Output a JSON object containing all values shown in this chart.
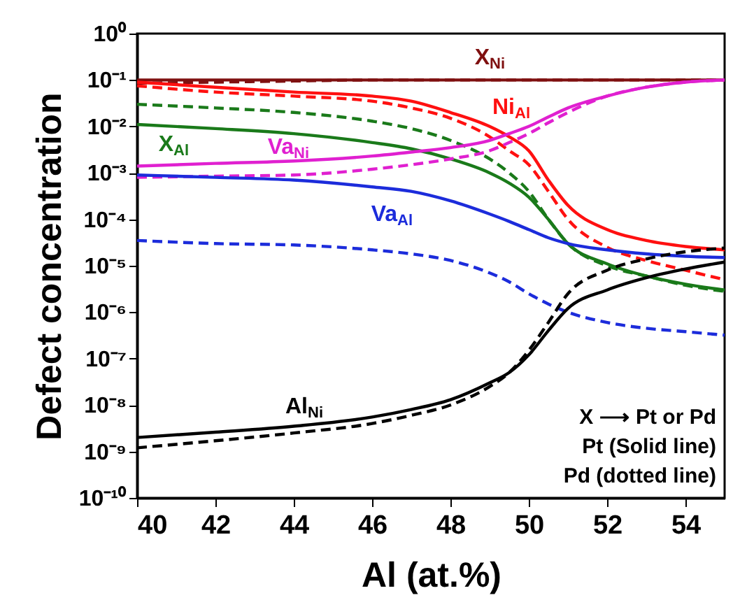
{
  "chart_data": {
    "type": "line",
    "xlabel": "Al (at.%)",
    "ylabel": "Defect concentration",
    "log": "y",
    "x": [
      40,
      42,
      44,
      46,
      47,
      48,
      49,
      49.5,
      50,
      50.5,
      51,
      52,
      53,
      54,
      55
    ],
    "xlim": [
      40,
      55
    ],
    "xticks": [
      40,
      42,
      44,
      46,
      48,
      50,
      52,
      54
    ],
    "ylim": [
      1e-10,
      1
    ],
    "yticks": [
      {
        "value": 1,
        "label": "10⁰"
      },
      {
        "value": 0.1,
        "label": "10⁻¹"
      },
      {
        "value": 0.01,
        "label": "10⁻²"
      },
      {
        "value": 0.001,
        "label": "10⁻³"
      },
      {
        "value": 0.0001,
        "label": "10⁻⁴"
      },
      {
        "value": 1e-05,
        "label": "10⁻⁵"
      },
      {
        "value": 1e-06,
        "label": "10⁻⁶"
      },
      {
        "value": 1e-07,
        "label": "10⁻⁷"
      },
      {
        "value": 1e-08,
        "label": "10⁻⁸"
      },
      {
        "value": 1e-09,
        "label": "10⁻⁹"
      },
      {
        "value": 1e-10,
        "label": "10⁻¹⁰"
      }
    ],
    "series": [
      {
        "name": "X$_{Ni}$",
        "color": "#7f1010",
        "line_style": "solid",
        "values": [
          0.1,
          0.1,
          0.1,
          0.1,
          0.1,
          0.1,
          0.1,
          0.1,
          0.1,
          0.1,
          0.1,
          0.1,
          0.1,
          0.1,
          0.1
        ]
      },
      {
        "color": "#7f1010",
        "line_style": "dashed",
        "values": [
          0.085,
          0.09,
          0.095,
          0.1,
          0.1,
          0.1,
          0.1,
          0.1,
          0.1,
          0.1,
          0.1,
          0.1,
          0.1,
          0.1,
          0.1
        ]
      },
      {
        "name": "Ni$_{Al}$",
        "color": "#ff1010",
        "line_style": "solid",
        "values": [
          0.09,
          0.07,
          0.055,
          0.045,
          0.035,
          0.02,
          0.01,
          0.006,
          0.003,
          0.0007,
          0.0002,
          6e-05,
          3.5e-05,
          2.6e-05,
          2.2e-05
        ]
      },
      {
        "color": "#ff1010",
        "line_style": "dashed",
        "values": [
          0.075,
          0.055,
          0.045,
          0.035,
          0.025,
          0.015,
          0.006,
          0.003,
          0.0015,
          0.0004,
          0.0001,
          2.5e-05,
          1.3e-05,
          8e-06,
          5e-06
        ]
      },
      {
        "name": "X$_{Al}$",
        "color": "#1a7a1a",
        "line_style": "solid",
        "values": [
          0.011,
          0.009,
          0.007,
          0.0045,
          0.0033,
          0.002,
          0.001,
          0.0006,
          0.0003,
          0.0001,
          3e-05,
          1.1e-05,
          6e-06,
          4e-06,
          3e-06
        ]
      },
      {
        "color": "#1a7a1a",
        "line_style": "dashed",
        "values": [
          0.03,
          0.025,
          0.02,
          0.013,
          0.009,
          0.005,
          0.002,
          0.001,
          0.0004,
          0.0001,
          3e-05,
          1e-05,
          6e-06,
          3.8e-06,
          2.8e-06
        ]
      },
      {
        "name": "Va$_{Ni}$",
        "color": "#e020d0",
        "line_style": "solid",
        "values": [
          0.0014,
          0.0016,
          0.0018,
          0.0023,
          0.0028,
          0.0035,
          0.005,
          0.007,
          0.01,
          0.016,
          0.025,
          0.045,
          0.07,
          0.09,
          0.1
        ]
      },
      {
        "color": "#e020d0",
        "line_style": "dashed",
        "values": [
          0.0008,
          0.00085,
          0.0009,
          0.0012,
          0.0015,
          0.002,
          0.003,
          0.0045,
          0.007,
          0.012,
          0.02,
          0.045,
          0.07,
          0.09,
          0.1
        ]
      },
      {
        "name": "Va$_{Al}$",
        "color": "#1c2cdb",
        "line_style": "solid",
        "values": [
          0.0009,
          0.0008,
          0.0007,
          0.0005,
          0.0004,
          0.00025,
          0.00013,
          9e-05,
          6e-05,
          4e-05,
          3e-05,
          2.2e-05,
          1.8e-05,
          1.6e-05,
          1.5e-05
        ]
      },
      {
        "color": "#1c2cdb",
        "line_style": "dashed",
        "values": [
          3.5e-05,
          3e-05,
          2.8e-05,
          2.2e-05,
          1.8e-05,
          1.3e-05,
          7e-06,
          4.5e-06,
          2.5e-06,
          1.5e-06,
          1e-06,
          6e-07,
          4.5e-07,
          3.8e-07,
          3.2e-07
        ]
      },
      {
        "name": "Al$_{Ni}$",
        "color": "#000000",
        "line_style": "solid",
        "values": [
          2e-09,
          2.6e-09,
          3.5e-09,
          5.5e-09,
          8e-09,
          1.3e-08,
          3e-08,
          5e-08,
          1.2e-07,
          4e-07,
          1.2e-06,
          3e-06,
          5.5e-06,
          8.5e-06,
          1.2e-05
        ]
      },
      {
        "color": "#000000",
        "line_style": "dashed",
        "values": [
          1.2e-09,
          1.7e-09,
          2.5e-09,
          4e-09,
          6e-09,
          1e-08,
          2.5e-08,
          5e-08,
          1.5e-07,
          6e-07,
          2.5e-06,
          8e-06,
          1.4e-05,
          2e-05,
          2.4e-05
        ]
      }
    ],
    "annotations": [
      "X ⟶ Pt or Pd",
      "Pt (Solid line)",
      "Pd (dotted line)"
    ]
  }
}
